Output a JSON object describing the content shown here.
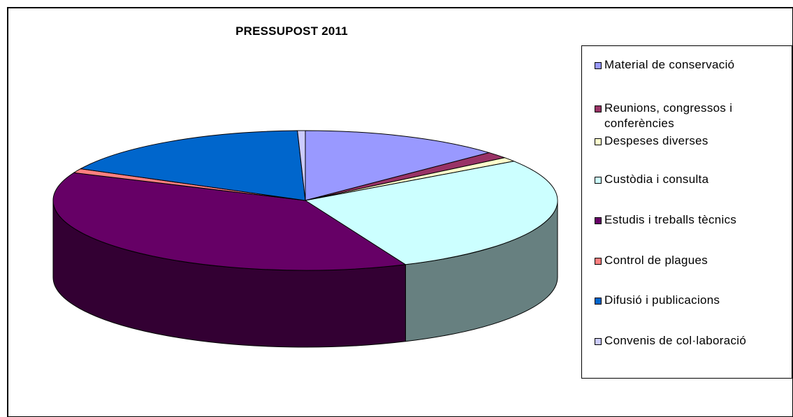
{
  "chart_data": {
    "type": "pie",
    "title": "PRESSUPOST 2011",
    "three_d": true,
    "legend_position": "right",
    "slices": [
      {
        "label": "Material de conservació",
        "value": 13.0,
        "color": "#9999ff",
        "side_color": "#5c5c99"
      },
      {
        "label": "Reunions, congressos i conferències",
        "value": 1.5,
        "color": "#993366",
        "side_color": "#5c1f3d"
      },
      {
        "label": "Despeses diverses",
        "value": 1.0,
        "color": "#ffffcc",
        "side_color": "#99997a"
      },
      {
        "label": "Custòdia i consulta",
        "value": 28.0,
        "color": "#ccffff",
        "side_color": "#678080"
      },
      {
        "label": "Estudis i treballs tècnics",
        "value": 38.0,
        "color": "#660066",
        "side_color": "#330033"
      },
      {
        "label": "Control de plagues",
        "value": 1.0,
        "color": "#ff8080",
        "side_color": "#994d4d"
      },
      {
        "label": "Difusió i publicacions",
        "value": 17.0,
        "color": "#0066cc",
        "side_color": "#003d7a"
      },
      {
        "label": "Convenis de col·laboració",
        "value": 0.5,
        "color": "#ccccff",
        "side_color": "#7a7a99"
      }
    ]
  }
}
